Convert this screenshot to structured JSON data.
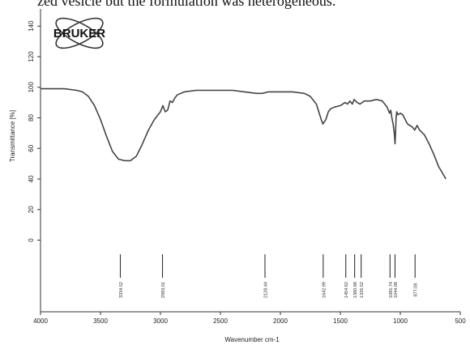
{
  "caption_top": "zed vesicle but the formulation was heterogeneous.",
  "logo": {
    "text": "BRUKER",
    "icon": "bruker-atom-logo-icon"
  },
  "chart_data": {
    "type": "line",
    "title": "",
    "xlabel": "Wavenumber cm-1",
    "ylabel": "Transmittance [%]",
    "xlim": [
      4000,
      500
    ],
    "ylim": [
      -100,
      140
    ],
    "x_ticks": [
      "4000",
      "3500",
      "3000",
      "2500",
      "2000",
      "1500",
      "1000",
      "500"
    ],
    "y_ticks": [
      "0",
      "20",
      "40",
      "60",
      "80",
      "100",
      "120",
      "140"
    ],
    "grid": false,
    "series": [
      {
        "x": [
          4000,
          3800,
          3700,
          3650,
          3600,
          3550,
          3500,
          3450,
          3400,
          3350,
          3300,
          3250,
          3200,
          3150,
          3100,
          3050,
          3000,
          2980,
          2960,
          2940,
          2920,
          2900,
          2880,
          2860,
          2800,
          2700,
          2600,
          2500,
          2400,
          2300,
          2200,
          2150,
          2100,
          2000,
          1900,
          1800,
          1750,
          1700,
          1680,
          1660,
          1645,
          1620,
          1600,
          1580,
          1550,
          1500,
          1460,
          1440,
          1420,
          1400,
          1385,
          1360,
          1336,
          1300,
          1250,
          1200,
          1150,
          1110,
          1090,
          1080,
          1070,
          1060,
          1050,
          1044,
          1040,
          1035,
          1030,
          1020,
          1000,
          980,
          960,
          940,
          920,
          900,
          880,
          860,
          840,
          800,
          760,
          720,
          680,
          650,
          620
        ],
        "y": [
          99,
          99,
          98,
          97,
          94,
          88,
          79,
          68,
          58,
          53,
          52,
          52,
          55,
          63,
          72,
          79,
          84,
          88,
          84,
          85,
          91,
          90,
          93,
          95,
          97,
          98,
          98,
          98,
          98,
          97,
          96,
          96,
          97,
          97,
          97,
          96,
          94,
          89,
          84,
          79,
          76,
          79,
          84,
          86,
          87,
          88,
          90,
          89,
          91,
          89,
          92,
          90,
          89,
          91,
          91,
          92,
          91,
          87,
          83,
          85,
          80,
          76,
          70,
          63,
          70,
          80,
          84,
          82,
          83,
          82,
          79,
          76,
          75,
          74,
          72,
          75,
          72,
          69,
          63,
          56,
          48,
          44,
          40
        ]
      }
    ],
    "peak_labels": [
      {
        "x": 3334.52,
        "label": "3334.52"
      },
      {
        "x": 2983.01,
        "label": "2983.01"
      },
      {
        "x": 2128.44,
        "label": "2128.44"
      },
      {
        "x": 1642.99,
        "label": "1642.99"
      },
      {
        "x": 1454.62,
        "label": "1454.62"
      },
      {
        "x": 1380.88,
        "label": "1380.88"
      },
      {
        "x": 1326.52,
        "label": "1326.52"
      },
      {
        "x": 1085.74,
        "label": "1085.74"
      },
      {
        "x": 1044.08,
        "label": "1044.08"
      },
      {
        "x": 877.08,
        "label": "877.08"
      }
    ]
  }
}
